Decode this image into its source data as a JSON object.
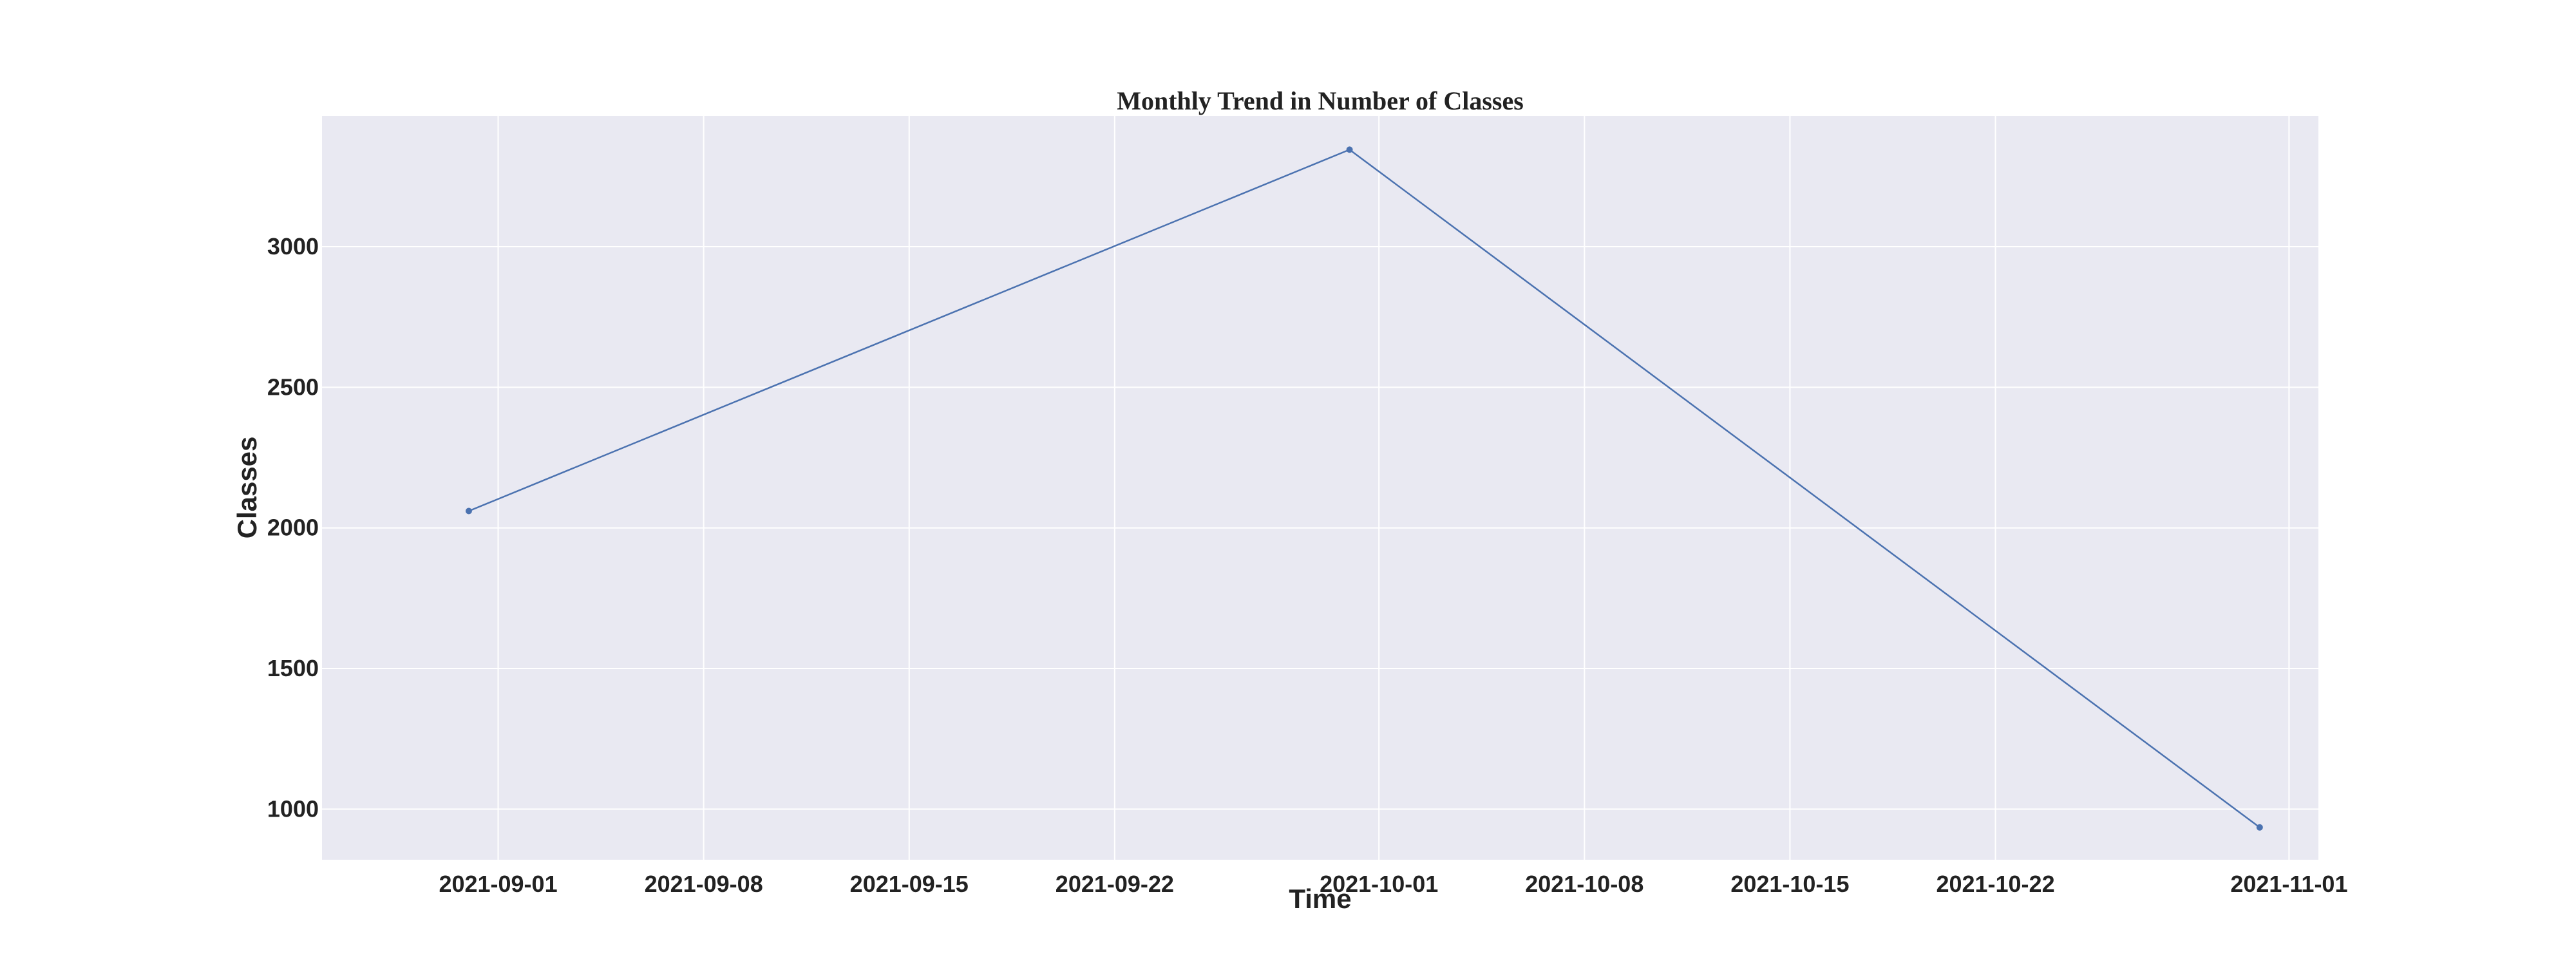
{
  "chart_data": {
    "type": "line",
    "title": "Monthly Trend in Number of Classes",
    "xlabel": "Time",
    "ylabel": "Classes",
    "x_type": "date",
    "xlim": [
      "2021-08-26",
      "2021-11-02"
    ],
    "ylim": [
      820,
      3465
    ],
    "x_ticks": [
      "2021-09-01",
      "2021-09-08",
      "2021-09-15",
      "2021-09-22",
      "2021-10-01",
      "2021-10-08",
      "2021-10-15",
      "2021-10-22",
      "2021-11-01"
    ],
    "y_ticks": [
      1000,
      1500,
      2000,
      2500,
      3000
    ],
    "grid": true,
    "colors": {
      "plot_background": "#e9e9f2",
      "grid": "#ffffff",
      "series": "#4b72b0"
    },
    "series": [
      {
        "x": [
          "2021-08-31",
          "2021-09-30",
          "2021-10-31"
        ],
        "y": [
          2060,
          3345,
          935
        ]
      }
    ]
  }
}
